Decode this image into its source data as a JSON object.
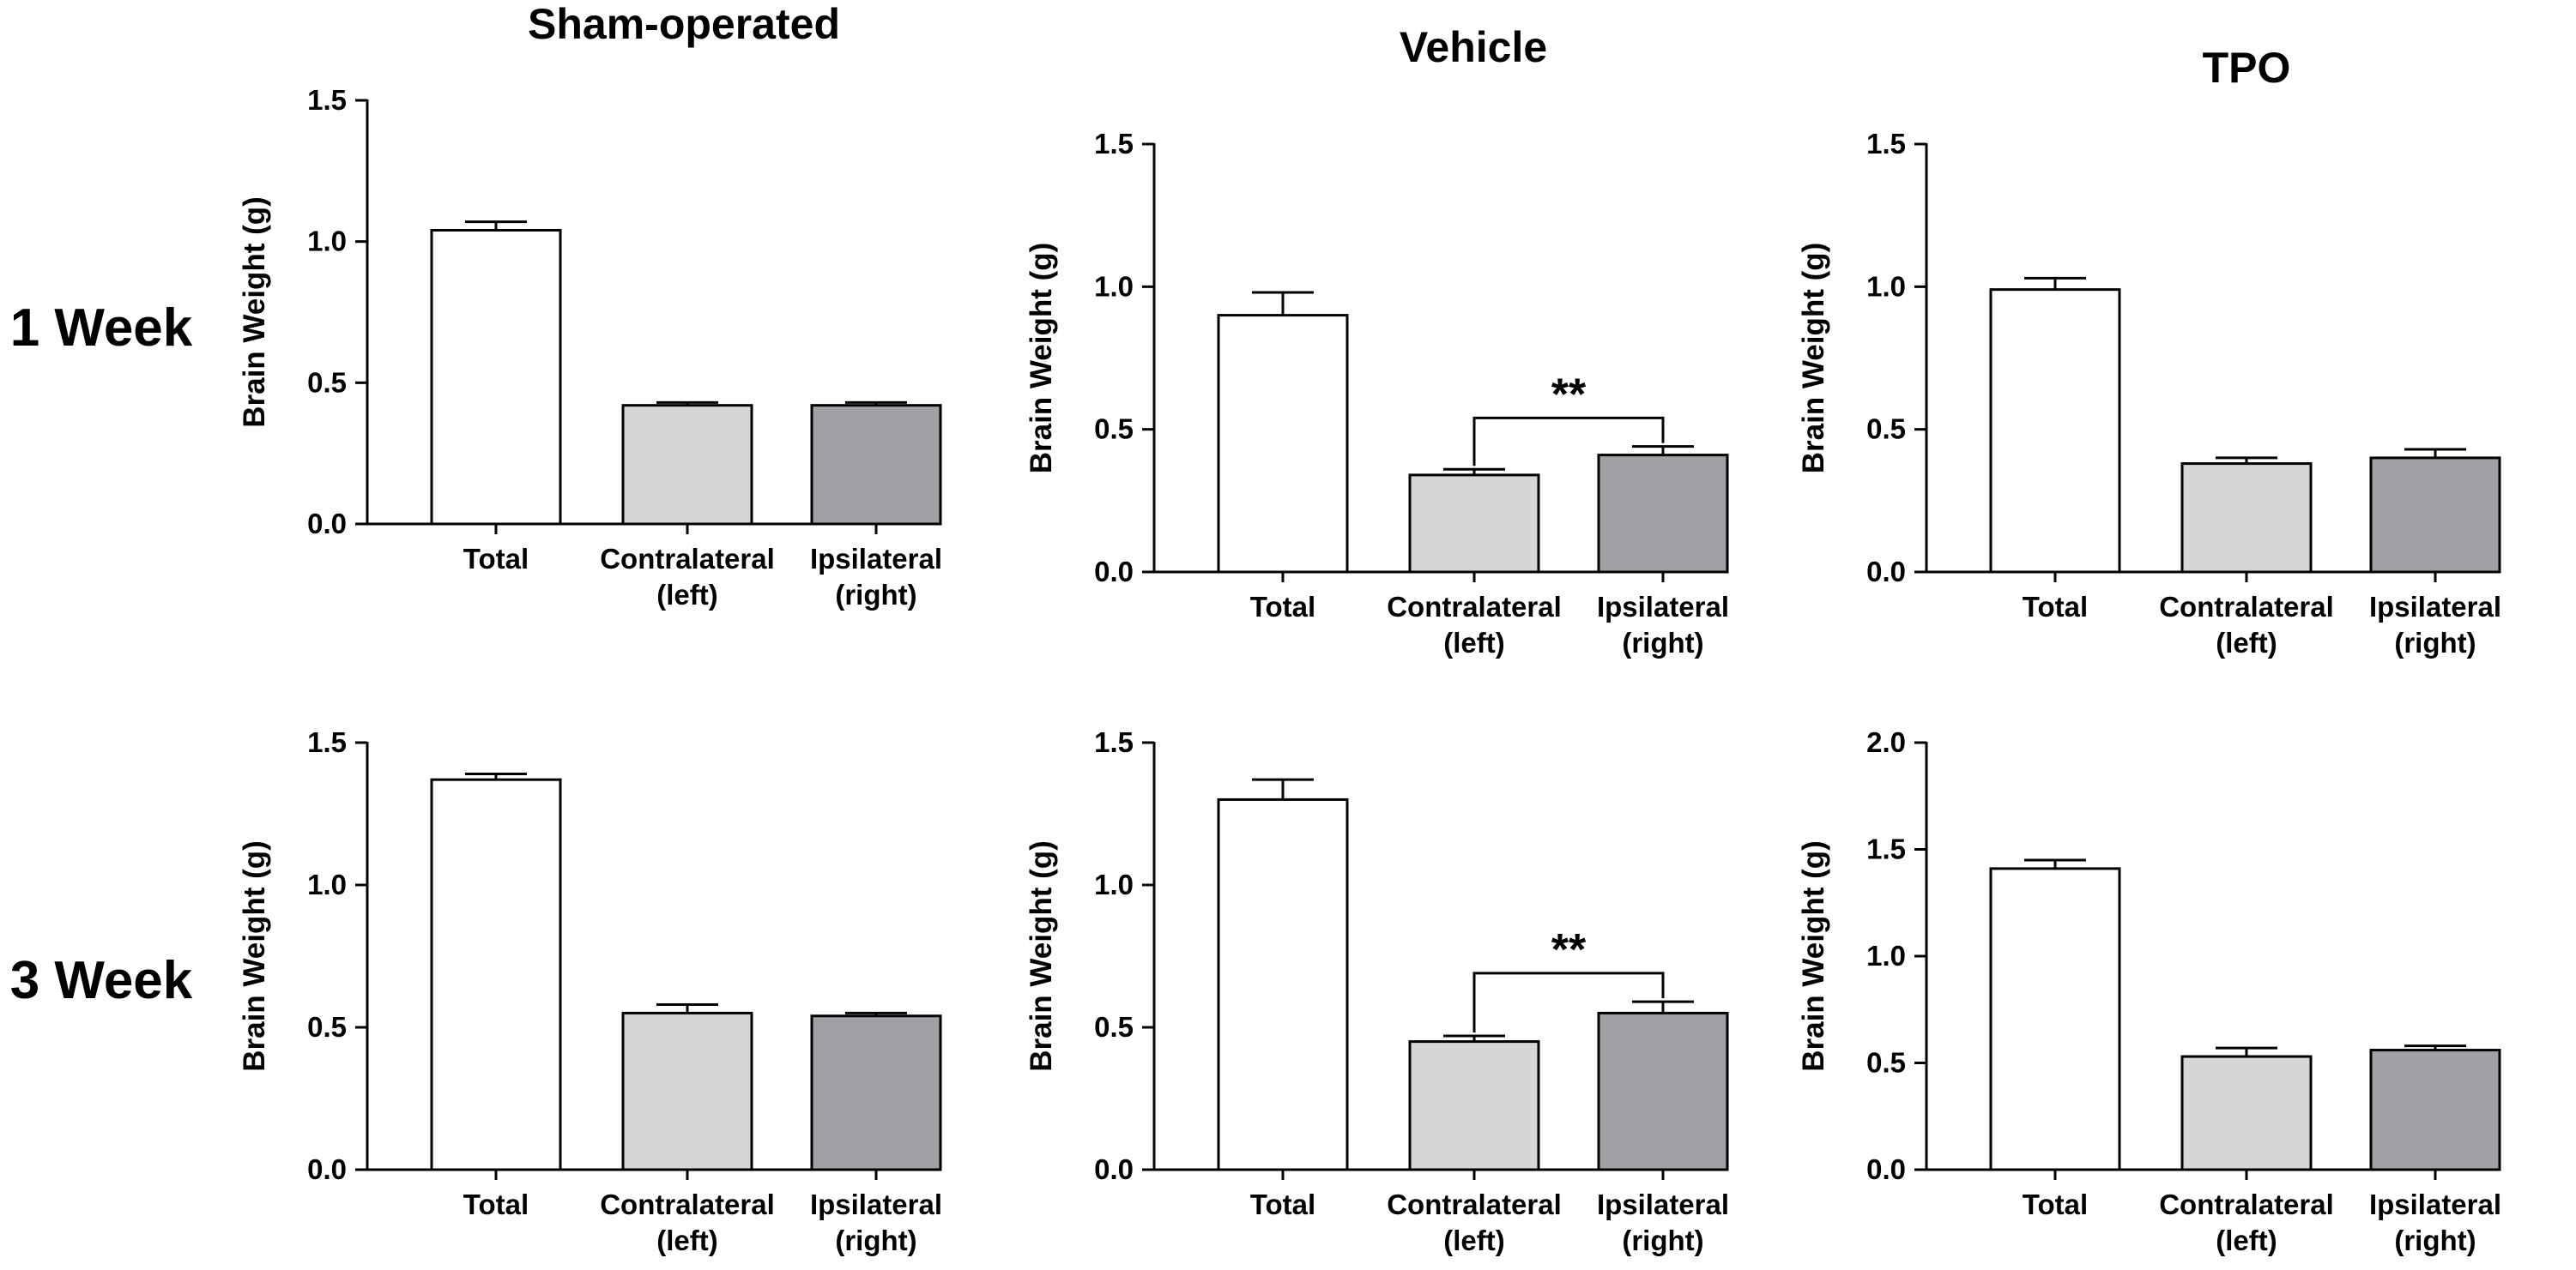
{
  "column_titles": [
    "Sham-operated",
    "Vehicle",
    "TPO"
  ],
  "row_labels": [
    "1 Week",
    "3 Week"
  ],
  "colors": {
    "total": "#ffffff",
    "contralateral": "#d6d6d6",
    "ipsilateral": "#a1a0a5",
    "axis": "#000000"
  },
  "chart_data": [
    {
      "type": "bar",
      "row": "1 Week",
      "column": "Sham-operated",
      "categories": [
        [
          "Total"
        ],
        [
          "Contralateral",
          "(left)"
        ],
        [
          "Ipsilateral",
          "(right)"
        ]
      ],
      "values": [
        1.04,
        0.42,
        0.42
      ],
      "errors": [
        0.03,
        0.01,
        0.01
      ],
      "ylabel": "Brain Weight (g)",
      "ylim": [
        0,
        1.5
      ],
      "yticks": [
        "0.0",
        "0.5",
        "1.0",
        "1.5"
      ],
      "significance": null
    },
    {
      "type": "bar",
      "row": "1 Week",
      "column": "Vehicle",
      "categories": [
        [
          "Total"
        ],
        [
          "Contralateral",
          "(left)"
        ],
        [
          "Ipsilateral",
          "(right)"
        ]
      ],
      "values": [
        0.9,
        0.34,
        0.41
      ],
      "errors": [
        0.08,
        0.02,
        0.03
      ],
      "ylabel": "Brain Weight (g)",
      "ylim": [
        0,
        1.5
      ],
      "yticks": [
        "0.0",
        "0.5",
        "1.0",
        "1.5"
      ],
      "significance": {
        "label": "**",
        "from": 1,
        "to": 2,
        "y": 0.54
      }
    },
    {
      "type": "bar",
      "row": "1 Week",
      "column": "TPO",
      "categories": [
        [
          "Total"
        ],
        [
          "Contralateral",
          "(left)"
        ],
        [
          "Ipsilateral",
          "(right)"
        ]
      ],
      "values": [
        0.99,
        0.38,
        0.4
      ],
      "errors": [
        0.04,
        0.02,
        0.03
      ],
      "ylabel": "Brain Weight (g)",
      "ylim": [
        0,
        1.5
      ],
      "yticks": [
        "0.0",
        "0.5",
        "1.0",
        "1.5"
      ],
      "significance": null
    },
    {
      "type": "bar",
      "row": "3 Week",
      "column": "Sham-operated",
      "categories": [
        [
          "Total"
        ],
        [
          "Contralateral",
          "(left)"
        ],
        [
          "Ipsilateral",
          "(right)"
        ]
      ],
      "values": [
        1.37,
        0.55,
        0.54
      ],
      "errors": [
        0.02,
        0.03,
        0.01
      ],
      "ylabel": "Brain Weight (g)",
      "ylim": [
        0,
        1.5
      ],
      "yticks": [
        "0.0",
        "0.5",
        "1.0",
        "1.5"
      ],
      "significance": null
    },
    {
      "type": "bar",
      "row": "3 Week",
      "column": "Vehicle",
      "categories": [
        [
          "Total"
        ],
        [
          "Contralateral",
          "(left)"
        ],
        [
          "Ipsilateral",
          "(right)"
        ]
      ],
      "values": [
        1.3,
        0.45,
        0.55
      ],
      "errors": [
        0.07,
        0.02,
        0.04
      ],
      "ylabel": "Brain Weight (g)",
      "ylim": [
        0,
        1.5
      ],
      "yticks": [
        "0.0",
        "0.5",
        "1.0",
        "1.5"
      ],
      "significance": {
        "label": "**",
        "from": 1,
        "to": 2,
        "y": 0.69
      }
    },
    {
      "type": "bar",
      "row": "3 Week",
      "column": "TPO",
      "categories": [
        [
          "Total"
        ],
        [
          "Contralateral",
          "(left)"
        ],
        [
          "Ipsilateral",
          "(right)"
        ]
      ],
      "values": [
        1.41,
        0.53,
        0.56
      ],
      "errors": [
        0.04,
        0.04,
        0.02
      ],
      "ylabel": "Brain Weight (g)",
      "ylim": [
        0,
        2.0
      ],
      "yticks": [
        "0.0",
        "0.5",
        "1.0",
        "1.5",
        "2.0"
      ],
      "significance": null
    }
  ]
}
